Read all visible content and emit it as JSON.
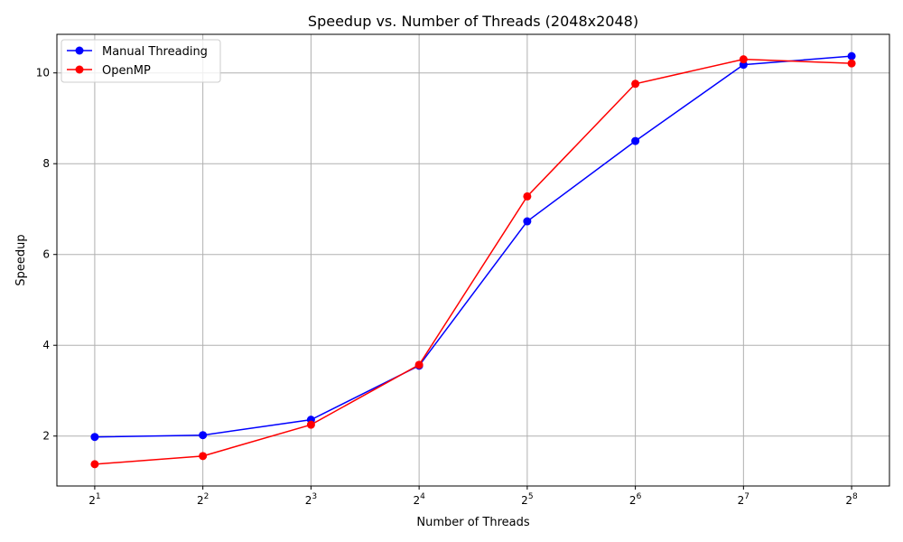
{
  "chart_data": {
    "type": "line",
    "title": "Speedup vs. Number of Threads (2048x2048)",
    "xlabel": "Number of Threads",
    "ylabel": "Speedup",
    "x_base": "2",
    "x_exponents": [
      "1",
      "2",
      "3",
      "4",
      "5",
      "6",
      "7",
      "8"
    ],
    "x": [
      2,
      4,
      8,
      16,
      32,
      64,
      128,
      256
    ],
    "xscale": "log2",
    "y_ticks": [
      2,
      4,
      6,
      8,
      10
    ],
    "y_tick_labels": [
      "2",
      "4",
      "6",
      "8",
      "10"
    ],
    "ylim": [
      0.9,
      10.85
    ],
    "grid": true,
    "legend_position": "top-left",
    "series": [
      {
        "name": "Manual Threading",
        "color": "#0000ff",
        "values": [
          1.98,
          2.02,
          2.36,
          3.55,
          6.73,
          8.5,
          10.18,
          10.37
        ]
      },
      {
        "name": "OpenMP",
        "color": "#ff0000",
        "values": [
          1.38,
          1.56,
          2.25,
          3.57,
          7.28,
          9.76,
          10.3,
          10.21
        ]
      }
    ]
  }
}
